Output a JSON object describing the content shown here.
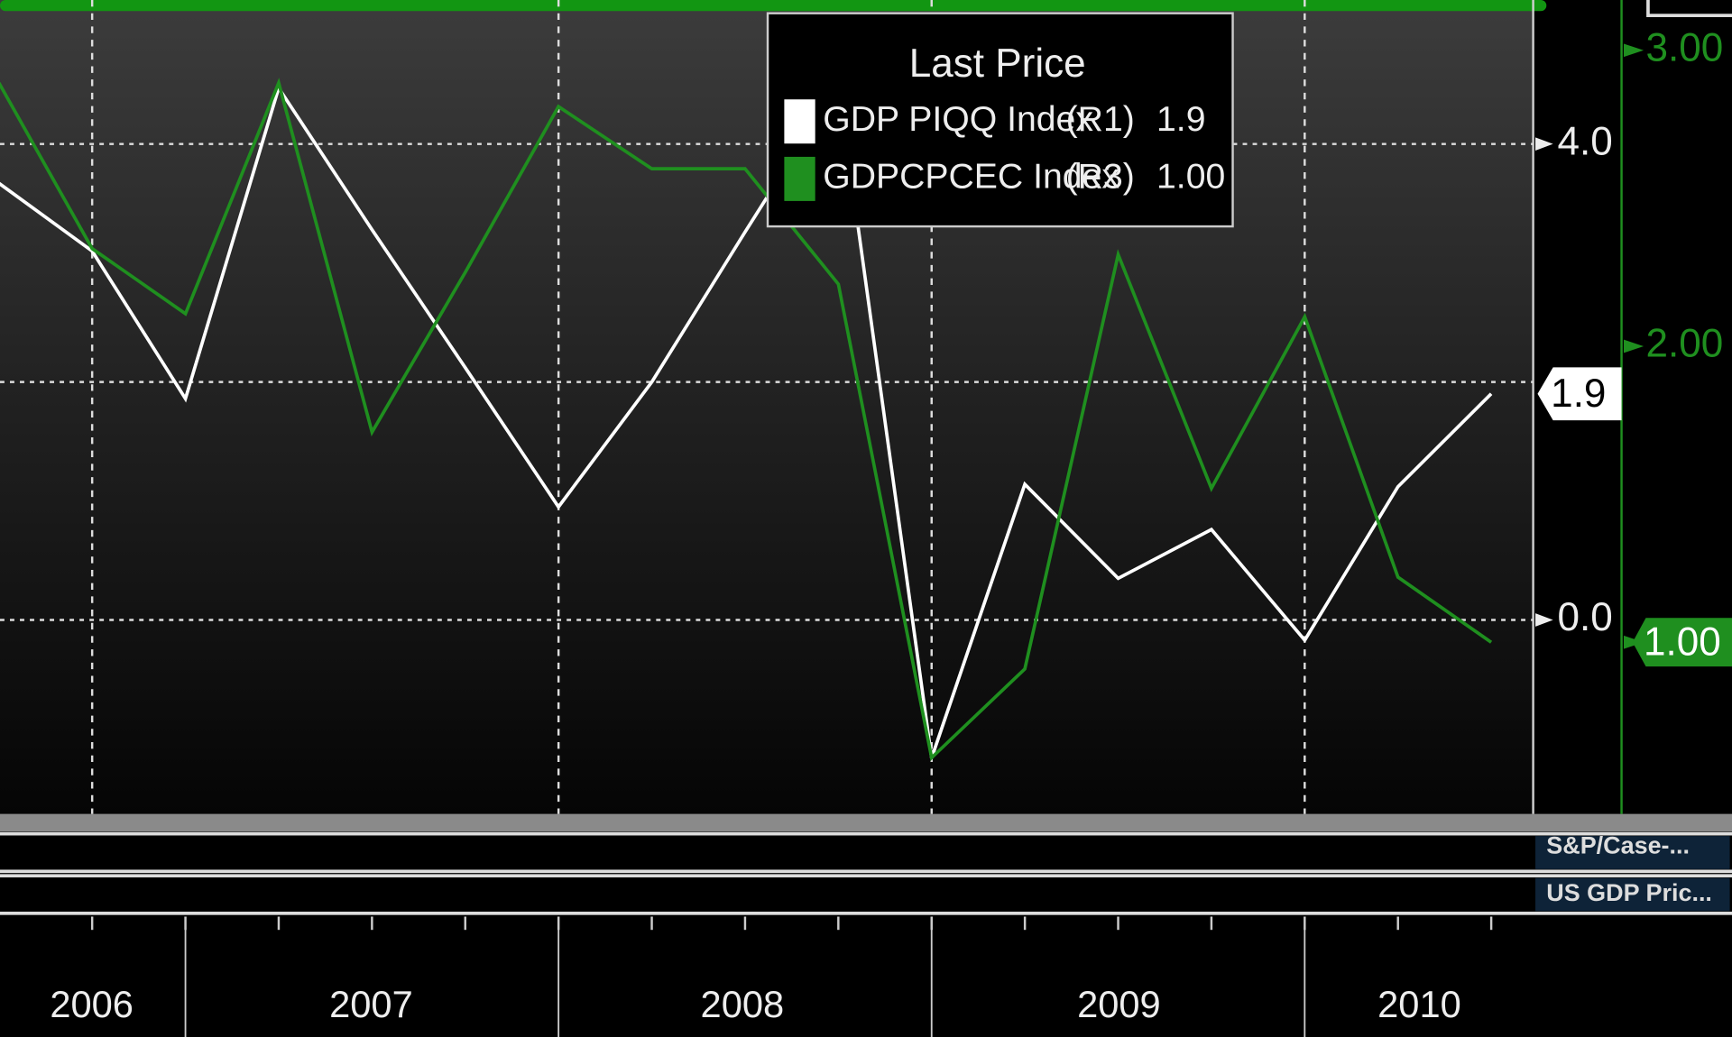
{
  "chart_data": {
    "type": "line",
    "legend_title": "Last Price",
    "categories": [
      null,
      null,
      null,
      null,
      null,
      null,
      null,
      null,
      null,
      null,
      null,
      null,
      null,
      null,
      null,
      null,
      null
    ],
    "year_labels": [
      "2006",
      "2007",
      "2008",
      "2009",
      "2010"
    ],
    "ylim": [
      -1.63,
      5.21
    ],
    "yticks": [
      {
        "value": 0,
        "label": "0.0"
      },
      {
        "value": 4,
        "label": "4.0"
      }
    ],
    "ygrid": [
      0,
      2,
      4
    ],
    "y2lim": [
      0.42,
      3.17
    ],
    "y2ticks": [
      {
        "value": 1,
        "label": "1.00"
      },
      {
        "value": 2,
        "label": "2.00"
      },
      {
        "value": 3,
        "label": "3.00"
      }
    ],
    "grid": true,
    "series": [
      {
        "name": "GDP PIQQ Index",
        "axis_label": "(R1)",
        "color": "#ffffff",
        "values": [
          3.67,
          3.1,
          1.86,
          4.47,
          3.28,
          2.12,
          0.95,
          2.0,
          3.26,
          4.5,
          -1.16,
          1.14,
          0.35,
          0.76,
          -0.17,
          1.12,
          1.9
        ],
        "value_labels": [
          null,
          null,
          null,
          null,
          null,
          null,
          null,
          null,
          null,
          null,
          null,
          null,
          null,
          null,
          null,
          null,
          "1.9"
        ]
      },
      {
        "name": "GDPCPCEC Index",
        "axis_label": "(R3)",
        "axis": "y2",
        "color": "#1f8f1f",
        "values": [
          2.89,
          2.33,
          2.11,
          2.89,
          1.71,
          2.25,
          2.81,
          2.6,
          2.6,
          2.21,
          0.61,
          0.91,
          2.31,
          1.52,
          2.1,
          1.22,
          1.0
        ],
        "value_labels": [
          null,
          null,
          null,
          null,
          null,
          null,
          null,
          null,
          null,
          null,
          null,
          null,
          null,
          null,
          null,
          null,
          "1.00"
        ]
      }
    ],
    "panels": [
      "S&P/Case-...",
      "US GDP Pric..."
    ]
  }
}
